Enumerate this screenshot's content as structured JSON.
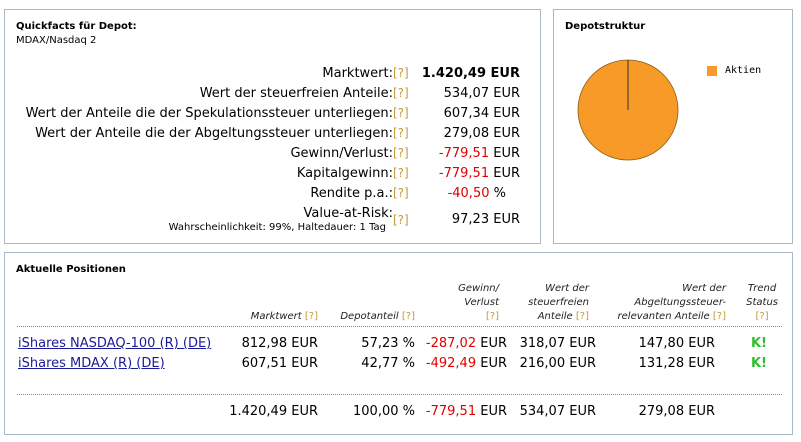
{
  "quickfacts": {
    "title": "Quickfacts für Depot:",
    "subtitle": "MDAX/Nasdaq 2",
    "help": "[?]",
    "rows": [
      {
        "label": "Marktwert:",
        "value": "1.420,49 EUR"
      },
      {
        "label": "Wert der steuerfreien Anteile:",
        "value": "534,07 EUR"
      },
      {
        "label": "Wert der Anteile die der Spekulationssteuer unterliegen:",
        "value": "607,34 EUR"
      },
      {
        "label": "Wert der Anteile die der Abgeltungssteuer unterliegen:",
        "value": "279,08 EUR"
      },
      {
        "label": "Gewinn/Verlust:",
        "value": "-779,51",
        "unit": "EUR"
      },
      {
        "label": "Kapitalgewinn:",
        "value": "-779,51",
        "unit": "EUR"
      },
      {
        "label": "Rendite p.a.:",
        "value": "-40,50",
        "unit": "%"
      },
      {
        "label": "Value-at-Risk:",
        "value": "97,23 EUR",
        "note": "Wahrscheinlichkeit: 99%, Haltedauer: 1 Tag"
      }
    ]
  },
  "depotstruktur": {
    "title": "Depotstruktur",
    "legend": "Aktien",
    "pie_color": "#f79a28",
    "share": 1.0
  },
  "positionen": {
    "title": "Aktuelle Positionen",
    "help": "[?]",
    "headers": {
      "marktwert": "Marktwert",
      "depotanteil": "Depotanteil",
      "gewinn_line1": "Gewinn/",
      "gewinn_line2": "Verlust",
      "steuerfrei_line1": "Wert der",
      "steuerfrei_line2": "steuerfreien",
      "steuerfrei_line3": "Anteile",
      "abgelt_line1": "Wert der",
      "abgelt_line2": "Abgeltungssteuer-",
      "abgelt_line3": "relevanten Anteile",
      "trend_line1": "Trend",
      "trend_line2": "Status"
    },
    "rows": [
      {
        "name": "iShares NASDAQ-100 (R) (DE)",
        "marktwert": "812,98 EUR",
        "anteil": "57,23 %",
        "gewinn": "-287,02",
        "gewinn_unit": "EUR",
        "steuerfrei": "318,07 EUR",
        "abgelt": "147,80 EUR",
        "trend": "K!"
      },
      {
        "name": "iShares MDAX (R) (DE)",
        "marktwert": "607,51 EUR",
        "anteil": "42,77 %",
        "gewinn": "-492,49",
        "gewinn_unit": "EUR",
        "steuerfrei": "216,00 EUR",
        "abgelt": "131,28 EUR",
        "trend": "K!"
      }
    ],
    "totals": {
      "marktwert": "1.420,49 EUR",
      "anteil": "100,00 %",
      "gewinn": "-779,51",
      "gewinn_unit": "EUR",
      "steuerfrei": "534,07 EUR",
      "abgelt": "279,08 EUR"
    }
  }
}
